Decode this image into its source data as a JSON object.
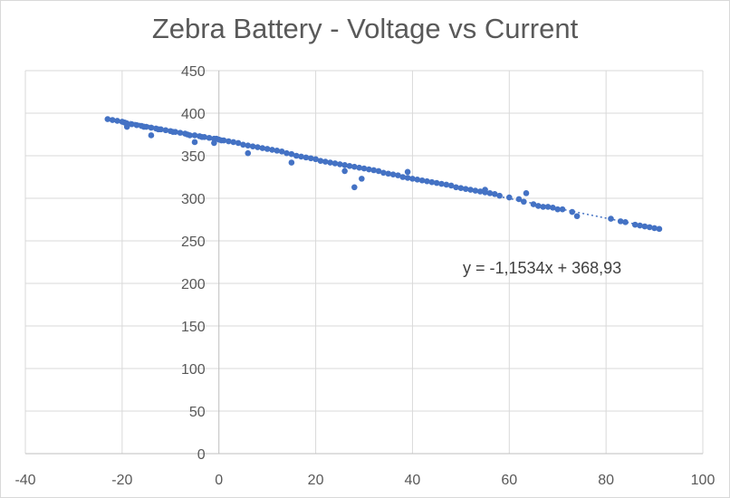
{
  "chart_data": {
    "type": "scatter",
    "title": "Zebra Battery - Voltage vs Current",
    "xlabel": "",
    "ylabel": "",
    "xlim": [
      -40,
      100
    ],
    "ylim": [
      0,
      450
    ],
    "x_ticks": [
      -40,
      -20,
      0,
      20,
      40,
      60,
      80,
      100
    ],
    "y_ticks": [
      0,
      50,
      100,
      150,
      200,
      250,
      300,
      350,
      400,
      450
    ],
    "x_tick_labels": [
      "-40",
      "-20",
      "0",
      "20",
      "40",
      "60",
      "80",
      "100"
    ],
    "y_tick_labels": [
      "0",
      "50",
      "100",
      "150",
      "200",
      "250",
      "300",
      "350",
      "400",
      "450"
    ],
    "grid": true,
    "legend": "none",
    "series": [
      {
        "color": "#4472c4",
        "x": [
          -23,
          -22,
          -21,
          -20,
          -19.5,
          -19,
          -18,
          -17,
          -16,
          -15.5,
          -15,
          -14,
          -13,
          -12.5,
          -12,
          -11,
          -10,
          -9.5,
          -9,
          -8,
          -7,
          -6.5,
          -6,
          -5,
          -4,
          -3.5,
          -3,
          -2,
          -1,
          -0.5,
          0,
          0.5,
          1,
          2,
          3,
          4,
          5,
          6,
          7,
          8,
          9,
          10,
          11,
          12,
          13,
          14,
          15,
          16,
          17,
          18,
          19,
          20,
          21,
          22,
          23,
          24,
          25,
          26,
          27,
          28,
          29,
          30,
          31,
          32,
          33,
          34,
          35,
          36,
          37,
          38,
          39,
          40,
          41,
          42,
          43,
          44,
          45,
          46,
          47,
          48,
          49,
          50,
          51,
          52,
          53,
          54,
          55,
          56,
          57,
          58,
          60,
          62,
          63,
          65,
          66,
          67,
          68,
          69,
          70,
          73,
          74,
          81,
          83,
          84,
          86,
          87,
          88,
          89,
          90,
          91,
          -19,
          -14,
          -5,
          -1,
          6,
          15,
          26,
          28,
          29.5,
          39,
          55,
          63.5,
          71
        ],
        "y": [
          393,
          392,
          391,
          390,
          389,
          388,
          387,
          386,
          385,
          384,
          384,
          383,
          382,
          381,
          381,
          380,
          379,
          378,
          378,
          377,
          376,
          375,
          374,
          374,
          373,
          372,
          372,
          371,
          370,
          370,
          369,
          368,
          368,
          367,
          366,
          365,
          363,
          362,
          361,
          360,
          359,
          358,
          357,
          356,
          355,
          353,
          352,
          350,
          349,
          348,
          347,
          346,
          344,
          343,
          342,
          341,
          340,
          339,
          338,
          337,
          336,
          335,
          334,
          333,
          332,
          330,
          329,
          328,
          327,
          325,
          324,
          323,
          322,
          321,
          320,
          319,
          318,
          317,
          316,
          315,
          313,
          312,
          311,
          310,
          309,
          308,
          307,
          306,
          305,
          303,
          301,
          299,
          296,
          293,
          291,
          290,
          290,
          289,
          287,
          284,
          279,
          276,
          273,
          272,
          269,
          268,
          267,
          266,
          265,
          264,
          384,
          374,
          366,
          365,
          353,
          342,
          332,
          313,
          323,
          331,
          310,
          306,
          287
        ]
      }
    ],
    "trendline": {
      "type": "linear",
      "slope": -1.1534,
      "intercept": 368.93,
      "x_range": [
        -23,
        91
      ],
      "label": "y = -1,1534x + 368,93",
      "color": "#4472c4"
    }
  }
}
